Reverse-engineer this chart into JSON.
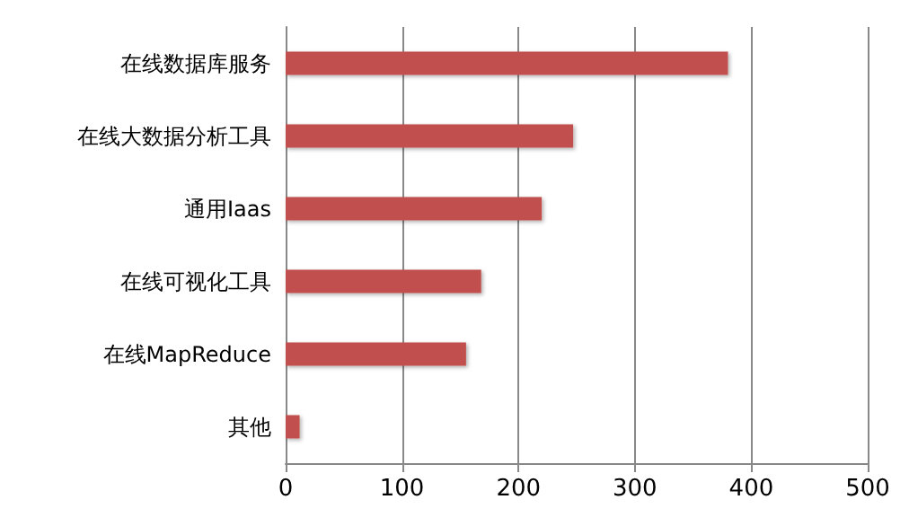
{
  "chart_data": {
    "type": "bar",
    "orientation": "horizontal",
    "categories": [
      "在线数据库服务",
      "在线大数据分析工具",
      "通用Iaas",
      "在线可视化工具",
      "在线MapReduce",
      "其他"
    ],
    "values": [
      380,
      247,
      220,
      168,
      155,
      12
    ],
    "color": "#c0504d",
    "xlim": [
      0,
      500
    ],
    "xticks": [
      0,
      100,
      200,
      300,
      400,
      500
    ],
    "grid": "x"
  }
}
